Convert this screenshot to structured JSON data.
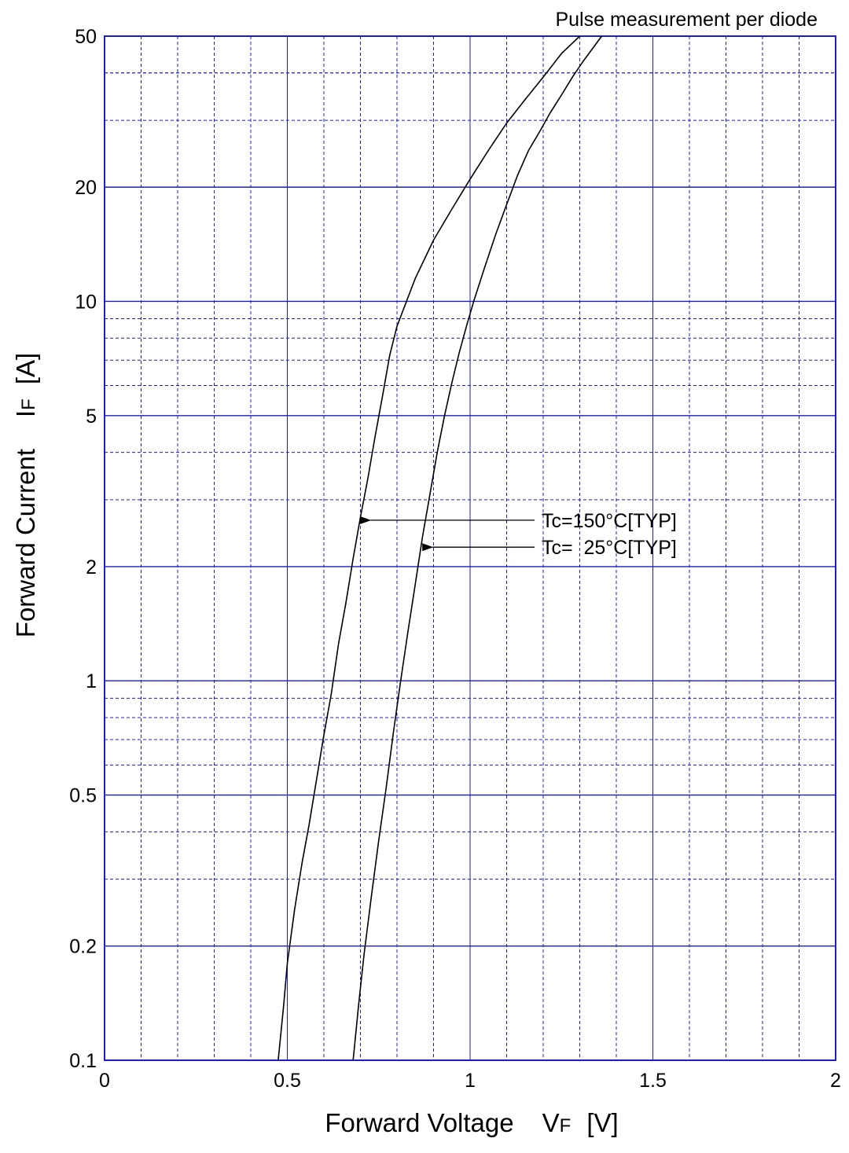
{
  "chart_data": {
    "type": "line",
    "title": "",
    "note": "Pulse measurement per diode",
    "xlabel": {
      "main": "Forward Voltage",
      "symbol": "V",
      "sub": "F",
      "unit": "[V]"
    },
    "ylabel": {
      "main": "Forward Current",
      "symbol": "I",
      "sub": "F",
      "unit": "[A]"
    },
    "xlim": [
      0,
      2
    ],
    "ylim": [
      0.1,
      50
    ],
    "yscale": "log",
    "grid": true,
    "x_ticks": [
      0,
      0.5,
      1,
      1.5,
      2
    ],
    "x_tick_labels": [
      "0",
      "0.5",
      "1",
      "1.5",
      "2"
    ],
    "y_ticks": [
      0.1,
      0.2,
      0.5,
      1,
      2,
      5,
      10,
      20,
      50
    ],
    "y_tick_labels": [
      "0.1",
      "0.2",
      "0.5",
      "1",
      "2",
      "5",
      "10",
      "20",
      "50"
    ],
    "series": [
      {
        "name": "Tc=150°C[TYP]",
        "x": [
          0.475,
          0.49,
          0.5,
          0.52,
          0.54,
          0.56,
          0.58,
          0.6,
          0.62,
          0.64,
          0.66,
          0.68,
          0.7,
          0.72,
          0.74,
          0.76,
          0.78,
          0.8,
          0.85,
          0.9,
          0.95,
          1.0,
          1.05,
          1.1,
          1.15,
          1.2,
          1.25,
          1.3
        ],
        "y": [
          0.1,
          0.14,
          0.18,
          0.25,
          0.33,
          0.42,
          0.55,
          0.72,
          0.92,
          1.25,
          1.6,
          2.1,
          2.7,
          3.4,
          4.4,
          5.6,
          7.2,
          8.6,
          11.5,
          14.5,
          17.5,
          21,
          25,
          29.5,
          34,
          39,
          45,
          50
        ]
      },
      {
        "name": "Tc=  25°C[TYP]",
        "x": [
          0.68,
          0.695,
          0.71,
          0.73,
          0.75,
          0.77,
          0.79,
          0.81,
          0.83,
          0.85,
          0.87,
          0.89,
          0.91,
          0.93,
          0.95,
          0.97,
          0.99,
          1.01,
          1.04,
          1.07,
          1.1,
          1.13,
          1.16,
          1.19,
          1.22,
          1.25,
          1.28,
          1.31,
          1.36
        ],
        "y": [
          0.1,
          0.14,
          0.19,
          0.27,
          0.38,
          0.52,
          0.73,
          1.0,
          1.35,
          1.8,
          2.4,
          3.1,
          4.0,
          5.0,
          6.1,
          7.3,
          8.6,
          10.0,
          12.3,
          15.0,
          18.0,
          21.5,
          25.0,
          28.0,
          31.5,
          35.0,
          39.0,
          43.0,
          50.0
        ]
      }
    ],
    "annotations": [
      {
        "text": "Tc=150°C[TYP]",
        "series": 0,
        "x": 0.71,
        "y": 2.65
      },
      {
        "text": "Tc=  25°C[TYP]",
        "series": 1,
        "x": 0.88,
        "y": 2.25
      }
    ],
    "colors": {
      "grid": "#1c1cc8",
      "frame": "#1c1cc8",
      "curve": "#000000",
      "text": "#000000"
    }
  }
}
